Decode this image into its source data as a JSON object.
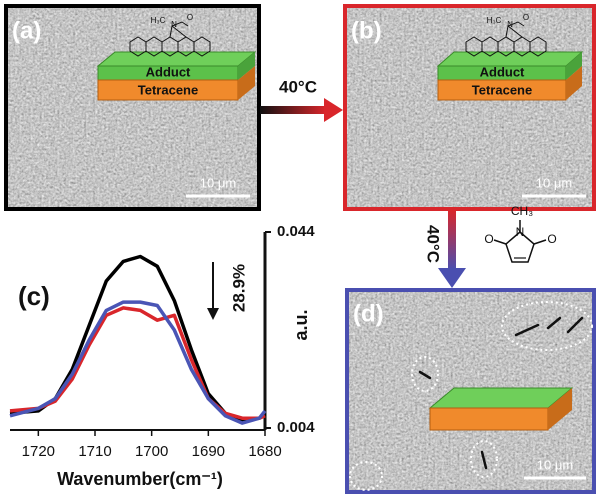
{
  "panels": {
    "a": {
      "label": "(a)",
      "adduct": "Adduct",
      "tetracene": "Tetracene",
      "scale": "10 μm",
      "atoms": [
        "H₃C",
        "N",
        "O"
      ]
    },
    "b": {
      "label": "(b)",
      "adduct": "Adduct",
      "tetracene": "Tetracene",
      "scale": "10 μm",
      "atoms": [
        "H₃C",
        "N",
        "O"
      ]
    },
    "d": {
      "label": "(d)",
      "scale": "10 μm"
    },
    "arrow_ab": "40°C",
    "arrow_bd": "40°C",
    "maleimide": {
      "atoms": [
        "O",
        "N",
        "O"
      ],
      "methyl": "CH₃"
    }
  },
  "chart_data": {
    "type": "line",
    "label": "(c)",
    "x_label": "Wavenumber(cm⁻¹)",
    "y_label": "a.u.",
    "annotation": "28.9%",
    "x": [
      1725,
      1720,
      1717,
      1714,
      1711,
      1708,
      1705,
      1702,
      1699,
      1696,
      1693,
      1690,
      1687,
      1684,
      1681,
      1680
    ],
    "series": [
      {
        "color": "#000000",
        "values": [
          0.007,
          0.0075,
          0.01,
          0.016,
          0.025,
          0.034,
          0.038,
          0.039,
          0.037,
          0.03,
          0.02,
          0.011,
          0.007,
          0.0055,
          0.006,
          0.007
        ]
      },
      {
        "color": "#d9262b",
        "values": [
          0.0075,
          0.008,
          0.0095,
          0.014,
          0.021,
          0.027,
          0.0285,
          0.028,
          0.026,
          0.027,
          0.018,
          0.01,
          0.007,
          0.006,
          0.006,
          0.0065
        ]
      },
      {
        "color": "#4a55b5",
        "values": [
          0.0065,
          0.008,
          0.01,
          0.015,
          0.022,
          0.028,
          0.0297,
          0.0297,
          0.029,
          0.024,
          0.016,
          0.01,
          0.0065,
          0.005,
          0.006,
          0.0075
        ]
      }
    ],
    "xlim": [
      1725,
      1680
    ],
    "xticks": [
      1720,
      1710,
      1700,
      1690,
      1680
    ],
    "ylim": [
      0.004,
      0.044
    ],
    "yticks": [
      0.004,
      0.044
    ]
  }
}
